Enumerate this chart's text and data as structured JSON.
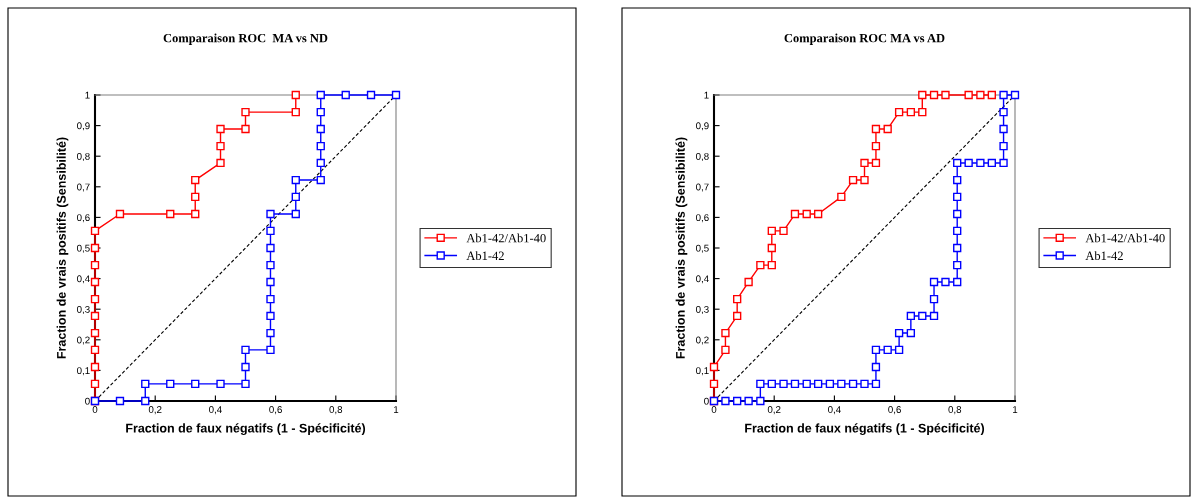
{
  "chart_data": [
    {
      "type": "line",
      "title": "Comparaison ROC  MA vs ND",
      "xlabel": "Fraction de faux négatifs (1 - Spécificité)",
      "ylabel": "Fraction de vrais positifs (Sensibilité)",
      "xlim": [
        0,
        1
      ],
      "ylim": [
        0,
        1
      ],
      "xticks": [
        0,
        {
          "value": 0.2,
          "label": "0,2"
        },
        {
          "value": 0.4,
          "label": "0,4"
        },
        {
          "value": 0.6,
          "label": "0,6"
        },
        {
          "value": 0.8,
          "label": "0,8"
        },
        1
      ],
      "yticks": [
        0,
        {
          "value": 0.1,
          "label": "0,1"
        },
        {
          "value": 0.2,
          "label": "0,2"
        },
        {
          "value": 0.3,
          "label": "0,3"
        },
        {
          "value": 0.4,
          "label": "0,4"
        },
        {
          "value": 0.5,
          "label": "0,5"
        },
        {
          "value": 0.6,
          "label": "0,6"
        },
        {
          "value": 0.7,
          "label": "0,7"
        },
        {
          "value": 0.8,
          "label": "0,8"
        },
        {
          "value": 0.9,
          "label": "0,9"
        },
        1
      ],
      "grid": false,
      "legend": "right",
      "marker": "square",
      "line_style": "solid",
      "series": [
        {
          "type": "line",
          "line_style": "dashed",
          "marker": "none",
          "color": "#000000",
          "x": [
            0,
            1
          ],
          "values": [
            0,
            1
          ]
        },
        {
          "name": "Ab1-42/Ab1-40",
          "color": "#ff0000",
          "x": [
            0,
            0,
            0,
            0,
            0,
            0,
            0,
            0,
            0,
            0,
            0,
            0.083,
            0.25,
            0.333,
            0.333,
            0.333,
            0.417,
            0.417,
            0.417,
            0.5,
            0.5,
            0.667,
            0.667
          ],
          "values": [
            0,
            0.056,
            0.111,
            0.167,
            0.222,
            0.278,
            0.333,
            0.389,
            0.444,
            0.5,
            0.556,
            0.611,
            0.611,
            0.611,
            0.667,
            0.722,
            0.778,
            0.833,
            0.889,
            0.889,
            0.944,
            0.944,
            1
          ]
        },
        {
          "name": "Ab1-42",
          "color": "#0000ff",
          "x": [
            0,
            0.083,
            0.167,
            0.167,
            0.25,
            0.333,
            0.417,
            0.5,
            0.5,
            0.5,
            0.583,
            0.583,
            0.583,
            0.583,
            0.583,
            0.583,
            0.583,
            0.583,
            0.583,
            0.667,
            0.667,
            0.667,
            0.75,
            0.75,
            0.75,
            0.75,
            0.75,
            0.75,
            0.833,
            0.917,
            1
          ],
          "values": [
            0,
            0,
            0,
            0.056,
            0.056,
            0.056,
            0.056,
            0.056,
            0.111,
            0.167,
            0.167,
            0.222,
            0.278,
            0.333,
            0.389,
            0.444,
            0.5,
            0.556,
            0.611,
            0.611,
            0.667,
            0.722,
            0.722,
            0.778,
            0.833,
            0.889,
            0.944,
            1,
            1,
            1,
            1
          ]
        }
      ]
    },
    {
      "type": "line",
      "title": "Comparaison ROC MA vs AD",
      "xlabel": "Fraction de faux négatifs (1 - Spécificité)",
      "ylabel": "Fraction de vrais positifs (Sensibilité)",
      "xlim": [
        0,
        1
      ],
      "ylim": [
        0,
        1
      ],
      "xticks": [
        0,
        {
          "value": 0.2,
          "label": "0,2"
        },
        {
          "value": 0.4,
          "label": "0,4"
        },
        {
          "value": 0.6,
          "label": "0,6"
        },
        {
          "value": 0.8,
          "label": "0,8"
        },
        1
      ],
      "yticks": [
        0,
        {
          "value": 0.1,
          "label": "0,1"
        },
        {
          "value": 0.2,
          "label": "0,2"
        },
        {
          "value": 0.3,
          "label": "0,3"
        },
        {
          "value": 0.4,
          "label": "0,4"
        },
        {
          "value": 0.5,
          "label": "0,5"
        },
        {
          "value": 0.6,
          "label": "0,6"
        },
        {
          "value": 0.7,
          "label": "0,7"
        },
        {
          "value": 0.8,
          "label": "0,8"
        },
        {
          "value": 0.9,
          "label": "0,9"
        },
        1
      ],
      "grid": false,
      "legend": "right",
      "marker": "square",
      "line_style": "solid",
      "series": [
        {
          "type": "line",
          "line_style": "dashed",
          "marker": "none",
          "color": "#000000",
          "x": [
            0,
            1
          ],
          "values": [
            0,
            1
          ]
        },
        {
          "name": "Ab1-42/Ab1-40",
          "color": "#ff0000",
          "x": [
            0,
            0,
            0,
            0.038,
            0.038,
            0.077,
            0.077,
            0.115,
            0.154,
            0.192,
            0.192,
            0.192,
            0.231,
            0.269,
            0.308,
            0.346,
            0.423,
            0.462,
            0.5,
            0.5,
            0.538,
            0.538,
            0.538,
            0.577,
            0.615,
            0.654,
            0.692,
            0.692,
            0.731,
            0.769,
            0.846,
            0.885,
            0.923
          ],
          "values": [
            0,
            0.056,
            0.111,
            0.167,
            0.222,
            0.278,
            0.333,
            0.389,
            0.444,
            0.444,
            0.5,
            0.556,
            0.556,
            0.611,
            0.611,
            0.611,
            0.667,
            0.722,
            0.722,
            0.778,
            0.778,
            0.833,
            0.889,
            0.889,
            0.944,
            0.944,
            0.944,
            1,
            1,
            1,
            1,
            1,
            1
          ]
        },
        {
          "name": "Ab1-42",
          "color": "#0000ff",
          "x": [
            0,
            0.038,
            0.077,
            0.115,
            0.154,
            0.154,
            0.192,
            0.231,
            0.269,
            0.308,
            0.346,
            0.385,
            0.423,
            0.462,
            0.5,
            0.538,
            0.538,
            0.538,
            0.577,
            0.615,
            0.615,
            0.654,
            0.654,
            0.692,
            0.731,
            0.731,
            0.731,
            0.769,
            0.808,
            0.808,
            0.808,
            0.808,
            0.808,
            0.808,
            0.808,
            0.808,
            0.846,
            0.885,
            0.923,
            0.962,
            0.962,
            0.962,
            0.962,
            0.962,
            1
          ],
          "values": [
            0,
            0,
            0,
            0,
            0,
            0.056,
            0.056,
            0.056,
            0.056,
            0.056,
            0.056,
            0.056,
            0.056,
            0.056,
            0.056,
            0.056,
            0.111,
            0.167,
            0.167,
            0.167,
            0.222,
            0.222,
            0.278,
            0.278,
            0.278,
            0.333,
            0.389,
            0.389,
            0.389,
            0.444,
            0.5,
            0.556,
            0.611,
            0.667,
            0.722,
            0.778,
            0.778,
            0.778,
            0.778,
            0.778,
            0.833,
            0.889,
            0.944,
            1,
            1
          ]
        }
      ]
    }
  ]
}
